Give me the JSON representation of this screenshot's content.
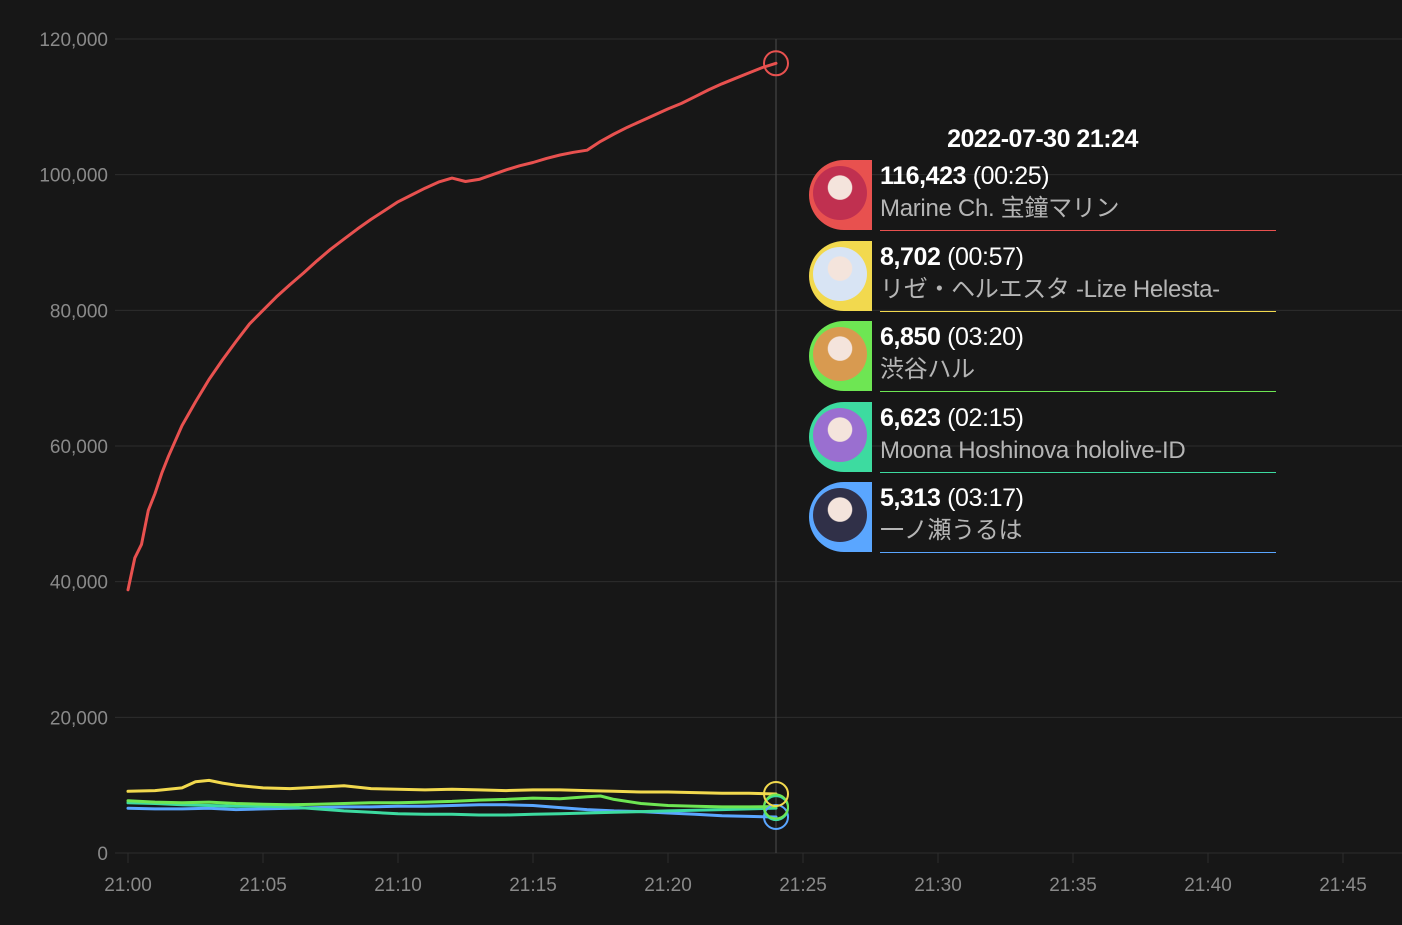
{
  "chart_data": {
    "type": "line",
    "x_ticks": [
      "21:00",
      "21:05",
      "21:10",
      "21:15",
      "21:20",
      "21:25",
      "21:30",
      "21:35",
      "21:40",
      "21:45"
    ],
    "y_ticks": [
      "120,000",
      "100,000",
      "80,000",
      "60,000",
      "40,000",
      "20,000",
      "0"
    ],
    "ylim": [
      0,
      120000
    ],
    "xlim_minutes": [
      0,
      45
    ],
    "grid": true,
    "cursor_minute": 24,
    "series": [
      {
        "name": "Marine Ch. 宝鐘マリン",
        "color": "#e8514f",
        "x": [
          0,
          0.25,
          0.5,
          0.75,
          1,
          1.25,
          1.5,
          2,
          2.5,
          3,
          3.5,
          4,
          4.5,
          5,
          5.5,
          6,
          6.5,
          7,
          7.5,
          8,
          8.5,
          9,
          9.5,
          10,
          10.5,
          11,
          11.5,
          12,
          12.5,
          13,
          13.5,
          14,
          14.5,
          15,
          15.5,
          16,
          16.5,
          17,
          17.5,
          18,
          18.5,
          19,
          19.5,
          20,
          20.5,
          21,
          21.5,
          22,
          22.5,
          23,
          23.5,
          24
        ],
        "values": [
          38800,
          43500,
          45500,
          50500,
          53000,
          56000,
          58500,
          63000,
          66500,
          69800,
          72700,
          75400,
          78000,
          80000,
          82000,
          83800,
          85500,
          87300,
          89000,
          90500,
          92000,
          93400,
          94700,
          96000,
          97000,
          98000,
          98900,
          99500,
          99000,
          99300,
          100000,
          100700,
          101300,
          101800,
          102400,
          102900,
          103300,
          103600,
          104900,
          106000,
          107000,
          107900,
          108800,
          109700,
          110500,
          111500,
          112500,
          113400,
          114200,
          115000,
          115800,
          116423
        ]
      },
      {
        "name": "リゼ・ヘルエスタ -Lize Helesta-",
        "color": "#f2d94e",
        "x": [
          0,
          1,
          2,
          2.5,
          3,
          3.5,
          4,
          5,
          6,
          7,
          8,
          9,
          10,
          11,
          12,
          13,
          14,
          15,
          16,
          17,
          18,
          19,
          20,
          21,
          22,
          23,
          24
        ],
        "values": [
          9100,
          9200,
          9600,
          10500,
          10700,
          10300,
          10000,
          9600,
          9500,
          9700,
          9900,
          9500,
          9400,
          9300,
          9400,
          9300,
          9200,
          9300,
          9300,
          9200,
          9100,
          9000,
          9000,
          8900,
          8800,
          8800,
          8702
        ]
      },
      {
        "name": "渋谷ハル",
        "color": "#6ee653",
        "x": [
          0,
          1,
          2,
          3,
          4,
          5,
          6,
          7,
          8,
          9,
          10,
          11,
          12,
          13,
          14,
          15,
          16,
          17,
          17.5,
          18,
          19,
          20,
          21,
          22,
          23,
          24
        ],
        "values": [
          7700,
          7500,
          7400,
          7500,
          7300,
          7200,
          7100,
          7200,
          7300,
          7400,
          7400,
          7500,
          7600,
          7800,
          7900,
          8100,
          8000,
          8300,
          8400,
          7900,
          7300,
          7000,
          6900,
          6800,
          6800,
          6850
        ]
      },
      {
        "name": "Moona Hoshinova hololive-ID",
        "color": "#3ddba0",
        "x": [
          0,
          1,
          2,
          3,
          4,
          5,
          6,
          7,
          8,
          9,
          10,
          11,
          12,
          13,
          14,
          15,
          16,
          17,
          18,
          19,
          20,
          21,
          22,
          23,
          24
        ],
        "values": [
          7400,
          7300,
          7100,
          7000,
          6900,
          6900,
          6800,
          6500,
          6200,
          6000,
          5800,
          5700,
          5700,
          5600,
          5600,
          5700,
          5800,
          5900,
          6000,
          6100,
          6200,
          6300,
          6400,
          6500,
          6623
        ]
      },
      {
        "name": "一ノ瀬うるは",
        "color": "#5aa6ff",
        "x": [
          0,
          1,
          2,
          3,
          4,
          5,
          6,
          7,
          8,
          9,
          10,
          11,
          12,
          13,
          14,
          15,
          16,
          17,
          18,
          19,
          20,
          21,
          22,
          23,
          24
        ],
        "values": [
          6600,
          6500,
          6500,
          6600,
          6400,
          6500,
          6600,
          6700,
          6800,
          6800,
          6900,
          6900,
          7000,
          7100,
          7100,
          7000,
          6700,
          6400,
          6200,
          6100,
          5900,
          5700,
          5500,
          5400,
          5313
        ]
      }
    ]
  },
  "tooltip": {
    "time": "2022-07-30 21:24",
    "entries": [
      {
        "value": "116,423",
        "duration": "(00:25)",
        "name": "Marine Ch. 宝鐘マリン",
        "color": "#e8514f",
        "avatar_bg": "#c03050"
      },
      {
        "value": "8,702",
        "duration": "(00:57)",
        "name": "リゼ・ヘルエスタ -Lize Helesta-",
        "color": "#f2d94e",
        "avatar_bg": "#d8e4f4"
      },
      {
        "value": "6,850",
        "duration": "(03:20)",
        "name": "渋谷ハル",
        "color": "#6ee653",
        "avatar_bg": "#d89a50"
      },
      {
        "value": "6,623",
        "duration": "(02:15)",
        "name": "Moona Hoshinova hololive-ID",
        "color": "#3ddba0",
        "avatar_bg": "#9a6fd0"
      },
      {
        "value": "5,313",
        "duration": "(03:17)",
        "name": "一ノ瀬うるは",
        "color": "#5aa6ff",
        "avatar_bg": "#303048"
      }
    ]
  }
}
